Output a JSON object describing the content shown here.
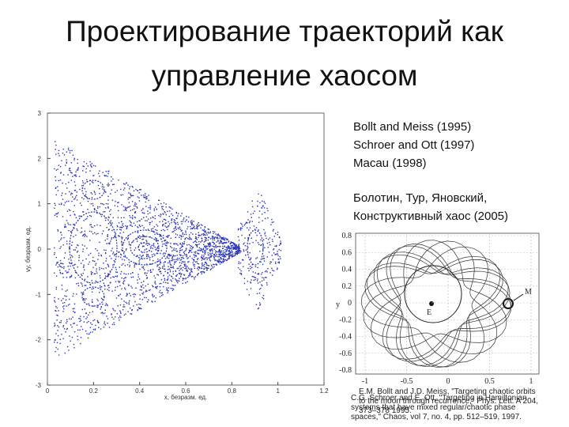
{
  "title": [
    "Проектирование траекторий как",
    "управление хаосом"
  ],
  "references": [
    "Bollt and Meiss (1995)",
    "Schroer and Ott (1997)",
    "Macau (1998)",
    "Болотин, Тур, Яновский,",
    "Конструктивный хаос (2005)"
  ],
  "left_figure": {
    "ylabel": "vy, безразм. ед.",
    "xlabel": "x, безразм. ед.",
    "yticks": [
      "3",
      "2",
      "1",
      "0",
      "-1",
      "-2",
      "-3"
    ],
    "xticks": [
      "0",
      "0.2",
      "0.4",
      "0.6",
      "0.8",
      "1",
      "1.2"
    ]
  },
  "right_figure": {
    "yticks": [
      "0.8",
      "0.6",
      "0.4",
      "0.2",
      "0",
      "-0.2",
      "-0.4",
      "-0.6",
      "-0.8"
    ],
    "xticks": [
      "-1",
      "-0.5",
      "0",
      "0.5",
      "1"
    ],
    "ylabel": "y",
    "point_m": "M",
    "point_e": "E"
  },
  "citations": [
    "E.M. Bollt and J.D. Meiss, \"Targeting chaotic orbits to the moon through recurrence,\" Phys. Lett. A 204, 373–378 1995.",
    "C.G. Schroer and E. Ott, \"Targeting in Hamiltonian systems that have mixed regular/chaotic phase spaces,\" Chaos, vol 7, no. 4, pp. 512–519, 1997."
  ]
}
